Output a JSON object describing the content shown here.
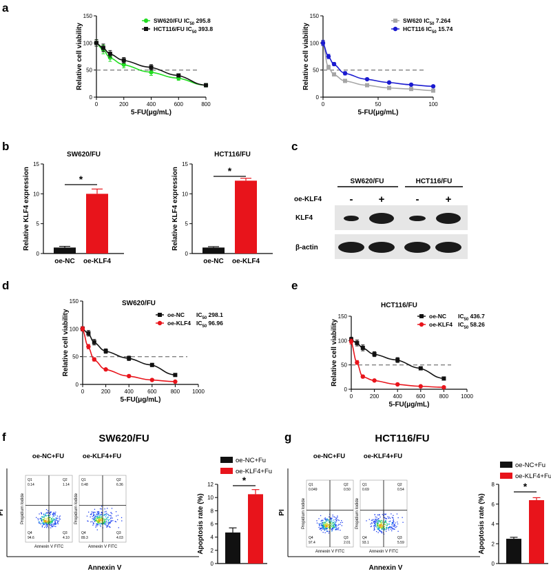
{
  "panels": {
    "a": "a",
    "b": "b",
    "c": "c",
    "d": "d",
    "e": "e",
    "f": "f",
    "g": "g"
  },
  "ic_sub": "50",
  "colors": {
    "green": "#22dd22",
    "black": "#111111",
    "grey": "#a6a6a6",
    "blue": "#1a1ad0",
    "red": "#e8141b",
    "dash": "#808080"
  },
  "chart_data": [
    {
      "id": "a1",
      "type": "line",
      "xlabel": "5-FU(μg/mL)",
      "ylabel": "Relative cell viability",
      "xlim": [
        0,
        800
      ],
      "ylim": [
        0,
        150
      ],
      "xticks": [
        "0",
        "200",
        "400",
        "600",
        "800"
      ],
      "yticks": [
        "0",
        "50",
        "100",
        "150"
      ],
      "dashed_y": 50,
      "series": [
        {
          "name": "SW620/FU",
          "ic": "295.8",
          "color": "#22dd22",
          "marker": "circle",
          "x": [
            0,
            50,
            100,
            200,
            400,
            600,
            800
          ],
          "y": [
            100,
            88,
            73,
            60,
            46,
            35,
            22
          ],
          "err": [
            6,
            8,
            7,
            6,
            6,
            4,
            3
          ]
        },
        {
          "name": "HCT116/FU",
          "ic": "393.8",
          "color": "#111111",
          "marker": "square",
          "x": [
            0,
            50,
            100,
            200,
            400,
            600,
            800
          ],
          "y": [
            100,
            91,
            80,
            68,
            55,
            40,
            22
          ],
          "err": [
            6,
            7,
            6,
            5,
            5,
            3,
            3
          ]
        }
      ]
    },
    {
      "id": "a2",
      "type": "line",
      "xlabel": "5-FU(μg/mL)",
      "ylabel": "Relative cell viability",
      "xlim": [
        0,
        100
      ],
      "ylim": [
        0,
        150
      ],
      "xticks": [
        "0",
        "50",
        "100"
      ],
      "yticks": [
        "0",
        "50",
        "100",
        "150"
      ],
      "dashed_y": 50,
      "series": [
        {
          "name": "SW620",
          "ic": "7.264",
          "color": "#a6a6a6",
          "marker": "square",
          "x": [
            0,
            5,
            10,
            20,
            40,
            60,
            80,
            100
          ],
          "y": [
            100,
            55,
            42,
            30,
            22,
            17,
            15,
            12
          ],
          "err": [
            4,
            4,
            3,
            3,
            2,
            2,
            2,
            2
          ]
        },
        {
          "name": "HCT116",
          "ic": "15.74",
          "color": "#1a1ad0",
          "marker": "circle",
          "x": [
            0,
            5,
            10,
            20,
            40,
            60,
            80,
            100
          ],
          "y": [
            100,
            75,
            61,
            44,
            33,
            27,
            23,
            20
          ],
          "err": [
            5,
            4,
            3,
            3,
            2,
            2,
            2,
            2
          ]
        }
      ]
    },
    {
      "id": "b1",
      "type": "bar",
      "title": "SW620/FU",
      "ylabel": "Relative KLF4 expression",
      "categories": [
        "oe-NC",
        "oe-KLF4"
      ],
      "values": [
        1,
        10
      ],
      "err": [
        0.2,
        0.8
      ],
      "ylim": [
        0,
        15
      ],
      "yticks": [
        "0",
        "5",
        "10",
        "15"
      ],
      "sig": "*",
      "bar_colors": [
        "#111111",
        "#e8141b"
      ]
    },
    {
      "id": "b2",
      "type": "bar",
      "title": "HCT116/FU",
      "ylabel": "Relative KLF4 expression",
      "categories": [
        "oe-NC",
        "oe-KLF4"
      ],
      "values": [
        1,
        12.2
      ],
      "err": [
        0.15,
        0.4
      ],
      "ylim": [
        0,
        15
      ],
      "yticks": [
        "0",
        "5",
        "10",
        "15"
      ],
      "sig": "*",
      "bar_colors": [
        "#111111",
        "#e8141b"
      ]
    },
    {
      "id": "d",
      "type": "line",
      "title": "SW620/FU",
      "xlabel": "5-FU(μg/mL)",
      "ylabel": "Relative cell viability",
      "xlim": [
        0,
        1000
      ],
      "ylim": [
        0,
        150
      ],
      "xticks": [
        "0",
        "200",
        "400",
        "600",
        "800",
        "1000"
      ],
      "yticks": [
        "0",
        "50",
        "100",
        "150"
      ],
      "dashed_y": 50,
      "series": [
        {
          "name": "oe-NC",
          "ic": "298.1",
          "color": "#111111",
          "marker": "square",
          "x": [
            0,
            50,
            100,
            200,
            400,
            600,
            800
          ],
          "y": [
            100,
            92,
            76,
            60,
            47,
            35,
            17
          ],
          "err": [
            4,
            5,
            5,
            4,
            4,
            3,
            2
          ]
        },
        {
          "name": "oe-KLF4",
          "ic": "96.96",
          "color": "#e8141b",
          "marker": "circle",
          "x": [
            0,
            50,
            100,
            200,
            400,
            600,
            800
          ],
          "y": [
            100,
            68,
            45,
            27,
            15,
            8,
            5
          ],
          "err": [
            4,
            4,
            3,
            2,
            2,
            1,
            1
          ]
        }
      ]
    },
    {
      "id": "e",
      "type": "line",
      "title": "HCT116/FU",
      "xlabel": "5-FU(μg/mL)",
      "ylabel": "Relative cell viability",
      "xlim": [
        0,
        1000
      ],
      "ylim": [
        0,
        150
      ],
      "xticks": [
        "0",
        "200",
        "400",
        "600",
        "800",
        "1000"
      ],
      "yticks": [
        "0",
        "50",
        "100",
        "150"
      ],
      "dashed_y": 50,
      "series": [
        {
          "name": "oe-NC",
          "ic": "436.7",
          "color": "#111111",
          "marker": "square",
          "x": [
            0,
            50,
            100,
            200,
            400,
            600,
            800
          ],
          "y": [
            102,
            95,
            85,
            72,
            60,
            43,
            22
          ],
          "err": [
            5,
            6,
            6,
            5,
            5,
            3,
            2
          ]
        },
        {
          "name": "oe-KLF4",
          "ic": "58.26",
          "color": "#e8141b",
          "marker": "circle",
          "x": [
            0,
            50,
            100,
            200,
            400,
            600,
            800
          ],
          "y": [
            98,
            55,
            26,
            18,
            10,
            6,
            4
          ],
          "err": [
            5,
            4,
            3,
            2,
            1,
            1,
            1
          ]
        }
      ]
    },
    {
      "id": "f",
      "type": "bar",
      "ylabel": "Apoptosis rate (%)",
      "categories": [
        "oe-NC+Fu",
        "oe-KLF4+Fu"
      ],
      "values": [
        4.7,
        10.5
      ],
      "err": [
        0.7,
        0.7
      ],
      "ylim": [
        0,
        12
      ],
      "yticks": [
        "0",
        "2",
        "4",
        "6",
        "8",
        "10",
        "12"
      ],
      "sig": "*",
      "bar_colors": [
        "#111111",
        "#e8141b"
      ]
    },
    {
      "id": "g",
      "type": "bar",
      "ylabel": "Apoptosis rate (%)",
      "categories": [
        "oe-NC+Fu",
        "oe-KLF4+Fu"
      ],
      "values": [
        2.5,
        6.4
      ],
      "err": [
        0.15,
        0.25
      ],
      "ylim": [
        0,
        8
      ],
      "yticks": [
        "0",
        "2",
        "4",
        "6",
        "8"
      ],
      "sig": "*",
      "bar_colors": [
        "#111111",
        "#e8141b"
      ]
    }
  ],
  "western": {
    "groups": [
      "SW620/FU",
      "HCT116/FU"
    ],
    "treatment_label": "oe-KLF4",
    "signs": [
      "-",
      "+",
      "-",
      "+"
    ],
    "rows": [
      "KLF4",
      "β-actin"
    ]
  },
  "flow": {
    "f": {
      "title": "SW620/FU",
      "plots": [
        {
          "label": "oe-NC+FU",
          "q": [
            "0.14",
            "1.14",
            "94.6",
            "4.10"
          ]
        },
        {
          "label": "oe-KLF4+FU",
          "q": [
            "0.48",
            "6.36",
            "89.3",
            "4.03"
          ]
        }
      ]
    },
    "g": {
      "title": "HCT116/FU",
      "plots": [
        {
          "label": "oe-NC+FU",
          "q": [
            "0.049",
            "0.50",
            "97.4",
            "2.01"
          ]
        },
        {
          "label": "oe-KLF4+FU",
          "q": [
            "0.69",
            "0.54",
            "93.1",
            "5.59"
          ]
        }
      ]
    },
    "qnames": [
      "Q1",
      "Q2",
      "Q4",
      "Q3"
    ],
    "inner_x": "Annexin V FITC",
    "inner_y": "Propidium Iodide",
    "outer_x": "Annexin V",
    "outer_y": "PI"
  }
}
